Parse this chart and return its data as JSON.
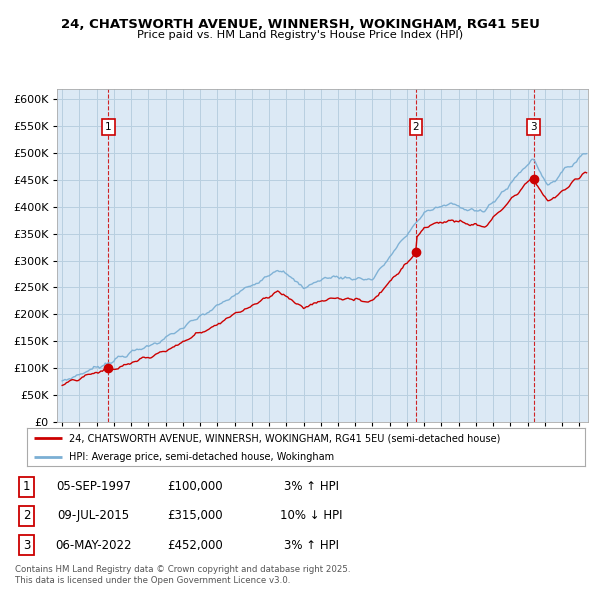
{
  "title": "24, CHATSWORTH AVENUE, WINNERSH, WOKINGHAM, RG41 5EU",
  "subtitle": "Price paid vs. HM Land Registry's House Price Index (HPI)",
  "sale_dates_decimal": [
    1997.674,
    2015.521,
    2022.34
  ],
  "sale_prices": [
    100000,
    315000,
    452000
  ],
  "sale_labels": [
    "1",
    "2",
    "3"
  ],
  "legend_line1": "24, CHATSWORTH AVENUE, WINNERSH, WOKINGHAM, RG41 5EU (semi-detached house)",
  "legend_line2": "HPI: Average price, semi-detached house, Wokingham",
  "footer": "Contains HM Land Registry data © Crown copyright and database right 2025.\nThis data is licensed under the Open Government Licence v3.0.",
  "hpi_color": "#7bafd4",
  "price_color": "#cc0000",
  "marker_color": "#cc0000",
  "vline_color": "#cc0000",
  "plot_bg_color": "#dce9f5",
  "background_color": "#ffffff",
  "grid_color": "#b8cfe0",
  "ylim": [
    0,
    620000
  ],
  "yticks": [
    0,
    50000,
    100000,
    150000,
    200000,
    250000,
    300000,
    350000,
    400000,
    450000,
    500000,
    550000,
    600000
  ],
  "xlim_start": 1994.7,
  "xlim_end": 2025.5,
  "ann_data": [
    [
      "1",
      "05-SEP-1997",
      "£100,000",
      "3% ↑ HPI"
    ],
    [
      "2",
      "09-JUL-2015",
      "£315,000",
      "10% ↓ HPI"
    ],
    [
      "3",
      "06-MAY-2022",
      "£452,000",
      "3% ↑ HPI"
    ]
  ]
}
